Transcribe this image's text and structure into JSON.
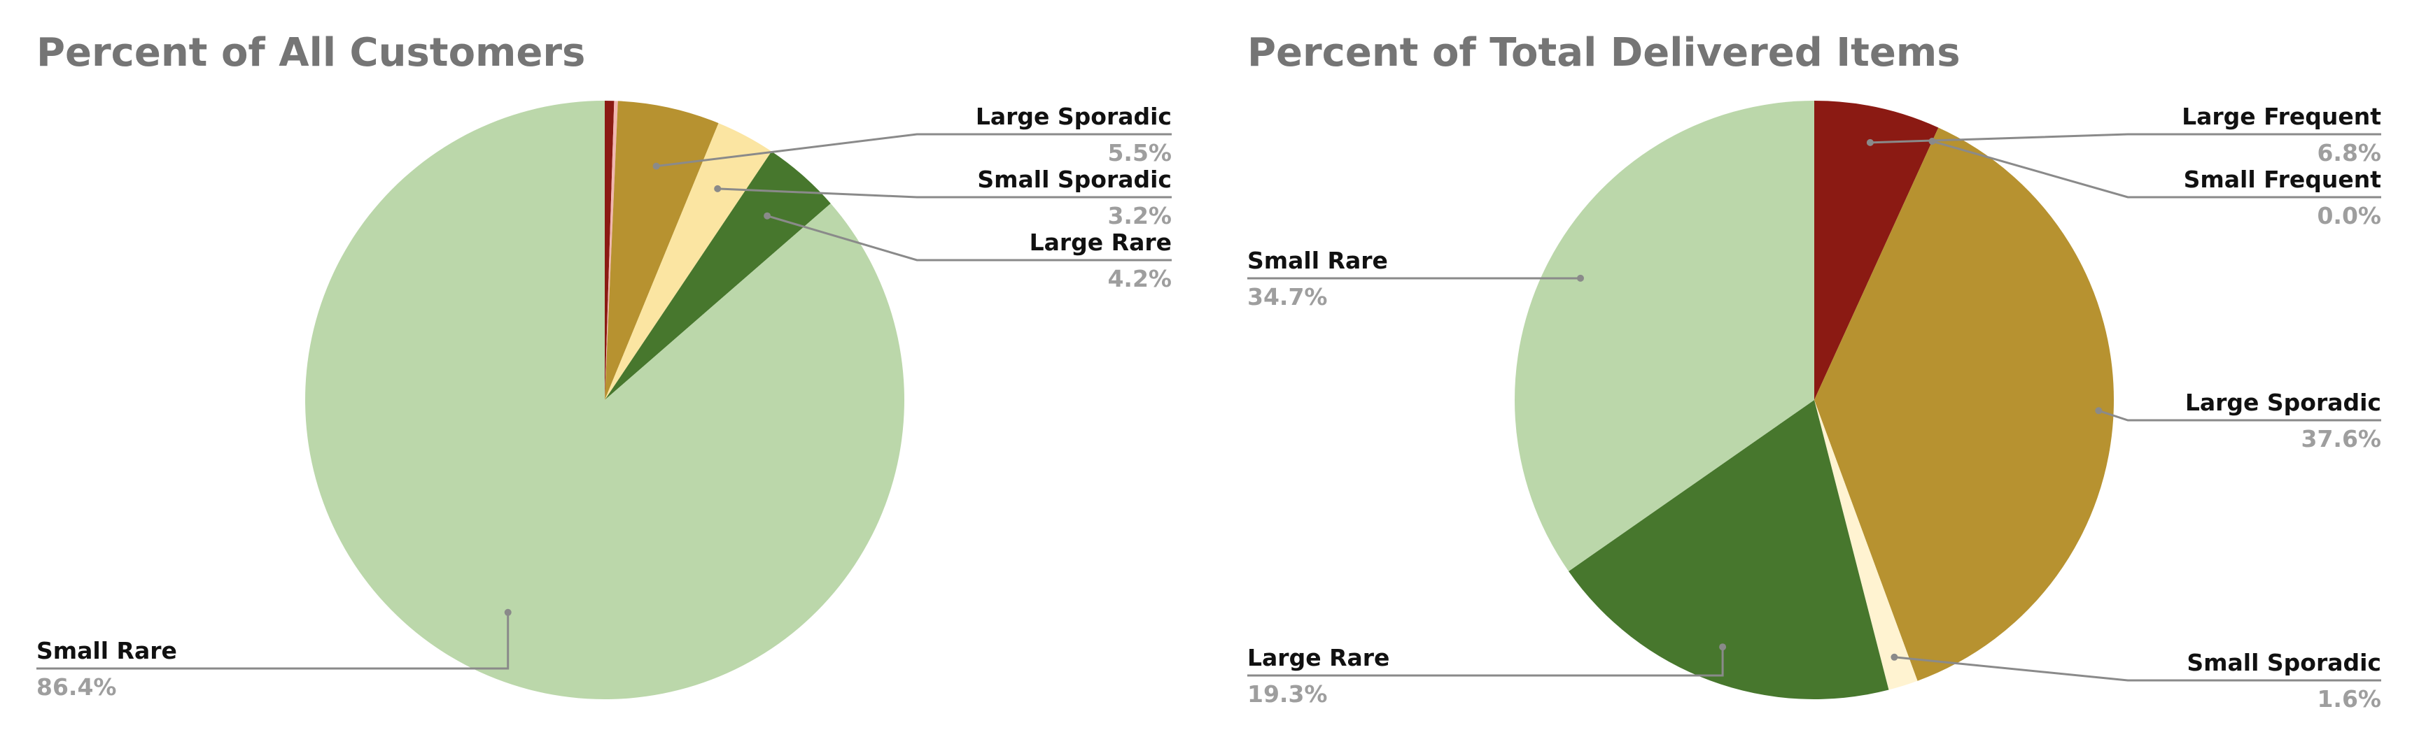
{
  "chart_data": [
    {
      "type": "pie",
      "title": "Percent of All Customers",
      "slices": [
        {
          "name": "Large Frequent",
          "value": 0.5,
          "label": "",
          "color": "#8b1a13"
        },
        {
          "name": "Small Frequent",
          "value": 0.2,
          "label": "",
          "color": "#f1b6b0"
        },
        {
          "name": "Large Sporadic",
          "value": 5.5,
          "label": "5.5%",
          "color": "#b79230"
        },
        {
          "name": "Small Sporadic",
          "value": 3.2,
          "label": "3.2%",
          "color": "#fbe5a2"
        },
        {
          "name": "Large Rare",
          "value": 4.2,
          "label": "4.2%",
          "color": "#47772d"
        },
        {
          "name": "Small Rare",
          "value": 86.4,
          "label": "86.4%",
          "color": "#bbd7aa"
        }
      ]
    },
    {
      "type": "pie",
      "title": "Percent of Total Delivered Items",
      "slices": [
        {
          "name": "Large Frequent",
          "value": 6.8,
          "label": "6.8%",
          "color": "#8b1a13"
        },
        {
          "name": "Small Frequent",
          "value": 0.0,
          "label": "0.0%",
          "color": "#f1b6b0"
        },
        {
          "name": "Large Sporadic",
          "value": 37.6,
          "label": "37.6%",
          "color": "#b79230"
        },
        {
          "name": "Small Sporadic",
          "value": 1.6,
          "label": "1.6%",
          "color": "#fff3d1"
        },
        {
          "name": "Large Rare",
          "value": 19.3,
          "label": "19.3%",
          "color": "#47772d"
        },
        {
          "name": "Small Rare",
          "value": 34.7,
          "label": "34.7%",
          "color": "#bbd7aa"
        }
      ]
    }
  ]
}
